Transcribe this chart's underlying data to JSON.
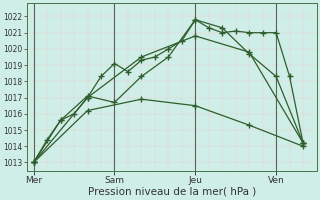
{
  "bg_color": "#d0eee8",
  "grid_minor_color": "#f0c8c8",
  "grid_major_color": "#f0c8c8",
  "vline_color": "#556655",
  "line_color": "#2d5e2d",
  "xlabel": "Pression niveau de la mer( hPa )",
  "xlabel_fontsize": 7.5,
  "yticks": [
    1013,
    1014,
    1015,
    1016,
    1017,
    1018,
    1019,
    1020,
    1021,
    1022
  ],
  "ylim": [
    1012.5,
    1022.8
  ],
  "xtick_labels": [
    "Mer",
    "Sam",
    "Jeu",
    "Ven"
  ],
  "xtick_positions": [
    0,
    12,
    24,
    36
  ],
  "xlim": [
    -1,
    42
  ],
  "vlines": [
    0,
    12,
    24,
    36
  ],
  "line1_x": [
    0,
    2,
    4,
    6,
    8,
    10,
    12,
    14,
    16,
    18,
    20,
    22,
    24,
    26,
    28,
    30,
    32,
    34,
    36,
    38,
    40
  ],
  "line1_y": [
    1013.0,
    1014.4,
    1015.6,
    1016.0,
    1017.0,
    1018.3,
    1019.1,
    1018.6,
    1019.3,
    1019.5,
    1020.0,
    1020.5,
    1021.8,
    1021.3,
    1021.0,
    1021.1,
    1021.0,
    1021.0,
    1021.0,
    1018.3,
    1014.2
  ],
  "line2_x": [
    0,
    4,
    8,
    12,
    16,
    20,
    24,
    28,
    32,
    36,
    40
  ],
  "line2_y": [
    1013.0,
    1015.6,
    1017.1,
    1016.7,
    1018.3,
    1019.5,
    1021.8,
    1021.3,
    1019.7,
    1018.3,
    1014.2
  ],
  "line3_x": [
    0,
    8,
    16,
    24,
    32,
    40
  ],
  "line3_y": [
    1013.0,
    1017.0,
    1019.5,
    1020.8,
    1019.8,
    1014.2
  ],
  "line4_x": [
    0,
    8,
    16,
    24,
    32,
    40
  ],
  "line4_y": [
    1013.0,
    1016.2,
    1016.9,
    1016.5,
    1015.3,
    1014.0
  ],
  "marker": "+",
  "markersize": 4,
  "linewidth": 0.9
}
